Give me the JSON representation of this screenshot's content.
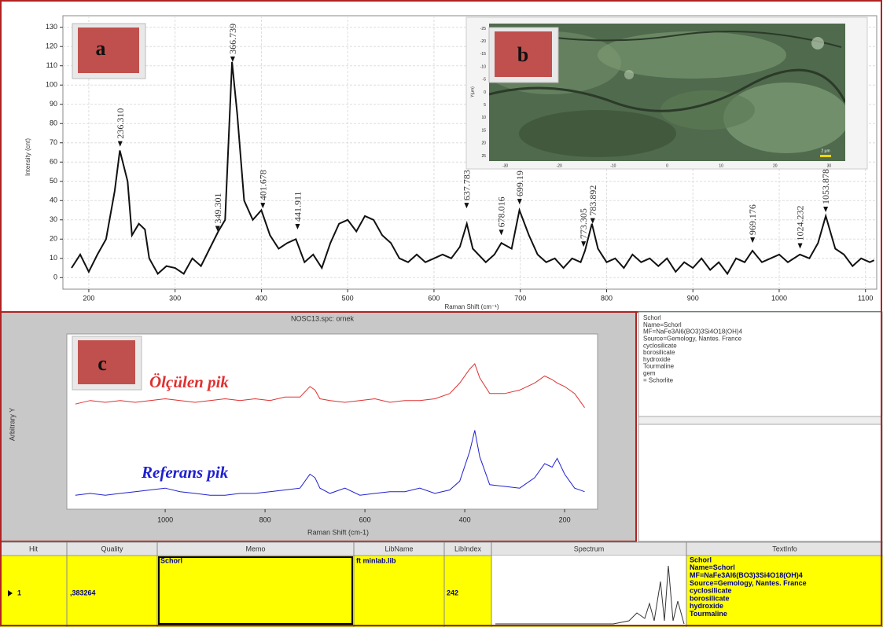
{
  "chart_data": [
    {
      "type": "line",
      "panel_label": "a",
      "x_label": "Raman Shift (cm⁻¹)",
      "y_label": "Intensity (cnt)",
      "xlim": [
        170,
        1113
      ],
      "ylim": [
        -6,
        136
      ],
      "xticks": [
        200,
        300,
        400,
        500,
        600,
        700,
        800,
        900,
        1000,
        1100
      ],
      "yticks": [
        0,
        10,
        20,
        30,
        40,
        50,
        60,
        70,
        80,
        90,
        100,
        110,
        120,
        130
      ],
      "grid": true,
      "color": "#111111",
      "x": [
        180,
        190,
        200,
        210,
        220,
        230,
        236,
        245,
        250,
        258,
        265,
        270,
        280,
        290,
        300,
        310,
        320,
        330,
        340,
        350,
        358,
        366,
        372,
        380,
        390,
        400,
        410,
        420,
        430,
        440,
        450,
        460,
        470,
        480,
        490,
        500,
        510,
        520,
        530,
        540,
        550,
        560,
        570,
        580,
        590,
        600,
        610,
        620,
        630,
        638,
        645,
        660,
        670,
        678,
        690,
        699,
        710,
        720,
        730,
        740,
        750,
        760,
        770,
        775,
        783,
        790,
        800,
        810,
        820,
        830,
        840,
        850,
        860,
        870,
        880,
        890,
        900,
        910,
        920,
        930,
        940,
        950,
        960,
        969,
        980,
        990,
        1000,
        1010,
        1024,
        1035,
        1045,
        1054,
        1065,
        1075,
        1085,
        1095,
        1105,
        1110
      ],
      "values": [
        5,
        12,
        3,
        12,
        20,
        45,
        66,
        50,
        22,
        28,
        25,
        10,
        2,
        6,
        5,
        2,
        10,
        6,
        15,
        24,
        30,
        112,
        85,
        40,
        30,
        35,
        22,
        15,
        18,
        20,
        8,
        12,
        5,
        18,
        28,
        30,
        24,
        32,
        30,
        22,
        18,
        10,
        8,
        12,
        8,
        10,
        12,
        10,
        16,
        28,
        15,
        8,
        12,
        18,
        15,
        35,
        22,
        12,
        8,
        10,
        5,
        10,
        8,
        14,
        28,
        15,
        8,
        10,
        5,
        12,
        8,
        10,
        6,
        10,
        3,
        8,
        5,
        10,
        4,
        8,
        2,
        10,
        8,
        14,
        8,
        10,
        12,
        8,
        12,
        10,
        18,
        32,
        15,
        12,
        6,
        10,
        8,
        9
      ],
      "annotations": [
        {
          "x": 236.31,
          "y": 68,
          "label": "236.310"
        },
        {
          "x": 349.301,
          "y": 24,
          "label": "349.301"
        },
        {
          "x": 366.739,
          "y": 112,
          "label": "366.739"
        },
        {
          "x": 401.678,
          "y": 36,
          "label": "401.678"
        },
        {
          "x": 441.911,
          "y": 25,
          "label": "441.911"
        },
        {
          "x": 637.783,
          "y": 36,
          "label": "637.783"
        },
        {
          "x": 678.016,
          "y": 22,
          "label": "678.016"
        },
        {
          "x": 699.19,
          "y": 38,
          "label": "699.19"
        },
        {
          "x": 773.305,
          "y": 16,
          "label": "773.305"
        },
        {
          "x": 783.892,
          "y": 28,
          "label": "783.892"
        },
        {
          "x": 969.176,
          "y": 18,
          "label": "969.176"
        },
        {
          "x": 1024.232,
          "y": 15,
          "label": "1024.232"
        },
        {
          "x": 1053.878,
          "y": 34,
          "label": "1053.878"
        }
      ]
    },
    {
      "type": "line",
      "panel_label": "c",
      "title": "NOSC13.spc: ornek",
      "x_label": "Raman Shift (cm-1)",
      "y_label": "Arbitrary Y",
      "xlim": [
        1197,
        134
      ],
      "ylim": [
        0,
        100
      ],
      "xticks": [
        1000,
        800,
        600,
        400,
        200
      ],
      "x": [
        1180,
        1150,
        1120,
        1090,
        1060,
        1030,
        1000,
        970,
        940,
        910,
        880,
        850,
        820,
        790,
        760,
        730,
        710,
        700,
        690,
        670,
        640,
        610,
        580,
        550,
        520,
        490,
        460,
        430,
        410,
        390,
        380,
        370,
        350,
        320,
        290,
        260,
        240,
        225,
        215,
        200,
        180,
        160
      ],
      "series": [
        {
          "name": "Ölçülen pik",
          "color": "#e03030",
          "values": [
            60,
            62,
            61,
            62,
            61,
            62,
            63,
            62,
            61,
            62,
            63,
            62,
            63,
            62,
            64,
            64,
            70,
            68,
            63,
            62,
            61,
            62,
            63,
            61,
            62,
            62,
            63,
            66,
            72,
            80,
            83,
            75,
            66,
            66,
            68,
            72,
            76,
            74,
            72,
            70,
            66,
            58
          ]
        },
        {
          "name": "Referans pik",
          "color": "#2020d0",
          "values": [
            8,
            9,
            8,
            9,
            10,
            11,
            12,
            10,
            9,
            8,
            8,
            9,
            9,
            10,
            11,
            12,
            20,
            18,
            12,
            9,
            12,
            8,
            9,
            10,
            10,
            12,
            9,
            11,
            16,
            33,
            45,
            30,
            14,
            13,
            12,
            18,
            26,
            24,
            29,
            20,
            12,
            10
          ]
        }
      ]
    }
  ],
  "micrograph": {
    "panel_label": "b",
    "y_label": "Y(µm)",
    "scale_bar": "2 µm",
    "xlim": [
      -33,
      33
    ],
    "ylim": [
      -27,
      27
    ],
    "xticks": [
      -30,
      -20,
      -10,
      0,
      10,
      20,
      30
    ],
    "yticks": [
      -25,
      -20,
      -15,
      -10,
      -5,
      0,
      5,
      10,
      15,
      20,
      25
    ]
  },
  "text_panel": {
    "lines": [
      "Schorl",
      "Name=Schorl",
      "MF=NaFe3Al6(BO3)3Si4O18(OH)4",
      "Source=Gemology, Nantes. France",
      "cyclosilicate",
      "borosilicate",
      "hydroxide",
      "Tourmaline",
      "gem",
      "= Schorlite"
    ]
  },
  "table": {
    "headers": [
      "Hit",
      "Quality",
      "Memo",
      "LibName",
      "LibIndex",
      "Spectrum",
      "TextInfo"
    ],
    "row": {
      "hit": "1",
      "quality": ",383264",
      "memo": "Schorl",
      "libname": "ft minlab.lib",
      "libindex": "242",
      "textinfo": [
        "Schorl",
        "Name=Schorl",
        "MF=NaFe3Al6(BO3)3Si4O18(OH)4",
        "Source=Gemology, Nantes. France",
        "cyclosilicate",
        "borosilicate",
        "hydroxide",
        "Tourmaline"
      ]
    }
  }
}
